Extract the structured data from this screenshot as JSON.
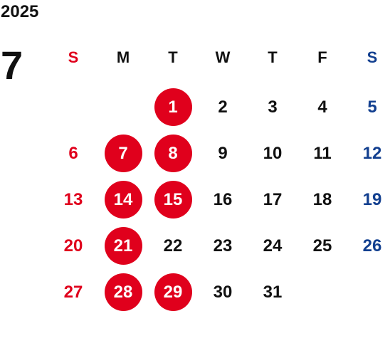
{
  "calendar": {
    "year": "2025",
    "month": "7",
    "weekdays": [
      "S",
      "M",
      "T",
      "W",
      "T",
      "F",
      "S"
    ],
    "days": [
      {
        "label": "",
        "highlight": false
      },
      {
        "label": "",
        "highlight": false
      },
      {
        "label": "1",
        "highlight": true
      },
      {
        "label": "2",
        "highlight": false
      },
      {
        "label": "3",
        "highlight": false
      },
      {
        "label": "4",
        "highlight": false
      },
      {
        "label": "5",
        "highlight": false
      },
      {
        "label": "6",
        "highlight": false
      },
      {
        "label": "7",
        "highlight": true
      },
      {
        "label": "8",
        "highlight": true
      },
      {
        "label": "9",
        "highlight": false
      },
      {
        "label": "10",
        "highlight": false
      },
      {
        "label": "11",
        "highlight": false
      },
      {
        "label": "12",
        "highlight": false
      },
      {
        "label": "13",
        "highlight": false
      },
      {
        "label": "14",
        "highlight": true
      },
      {
        "label": "15",
        "highlight": true
      },
      {
        "label": "16",
        "highlight": false
      },
      {
        "label": "17",
        "highlight": false
      },
      {
        "label": "18",
        "highlight": false
      },
      {
        "label": "19",
        "highlight": false
      },
      {
        "label": "20",
        "highlight": false
      },
      {
        "label": "21",
        "highlight": true
      },
      {
        "label": "22",
        "highlight": false
      },
      {
        "label": "23",
        "highlight": false
      },
      {
        "label": "24",
        "highlight": false
      },
      {
        "label": "25",
        "highlight": false
      },
      {
        "label": "26",
        "highlight": false
      },
      {
        "label": "27",
        "highlight": false
      },
      {
        "label": "28",
        "highlight": true
      },
      {
        "label": "29",
        "highlight": true
      },
      {
        "label": "30",
        "highlight": false
      },
      {
        "label": "31",
        "highlight": false
      }
    ]
  },
  "colors": {
    "sunday": "#e0001c",
    "saturday": "#123f8f",
    "weekday": "#111111",
    "highlight_fill": "#e0001c",
    "highlight_text": "#ffffff"
  }
}
